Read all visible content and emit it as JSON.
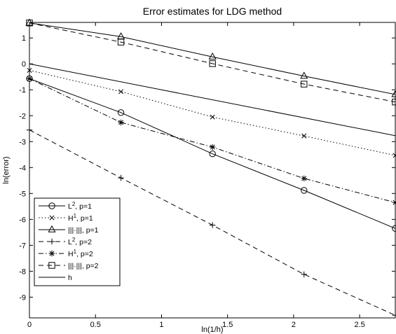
{
  "chart_data": {
    "type": "line",
    "title": "Error estimates for LDG method",
    "xlabel": "ln(1/h)",
    "ylabel": "ln(error)",
    "xlim": [
      0,
      2.77
    ],
    "ylim": [
      -9.8,
      1.6
    ],
    "grid": false,
    "legend_position": "bottom-left",
    "x_ticks": [
      {
        "value": 0,
        "label": "0"
      },
      {
        "value": 0.5,
        "label": "0.5"
      },
      {
        "value": 1,
        "label": "1"
      },
      {
        "value": 1.5,
        "label": "1.5"
      },
      {
        "value": 2,
        "label": "2"
      },
      {
        "value": 2.5,
        "label": "2.5"
      }
    ],
    "y_ticks": [
      {
        "value": 1,
        "label": "1"
      },
      {
        "value": 0,
        "label": "0"
      },
      {
        "value": -1,
        "label": "-1"
      },
      {
        "value": -2,
        "label": "-2"
      },
      {
        "value": -3,
        "label": "-3"
      },
      {
        "value": -4,
        "label": "-4"
      },
      {
        "value": -5,
        "label": "-5"
      },
      {
        "value": -6,
        "label": "-6"
      },
      {
        "value": -7,
        "label": "-7"
      },
      {
        "value": -8,
        "label": "-8"
      },
      {
        "value": -9,
        "label": "-9"
      }
    ],
    "series": [
      {
        "name": "L², p=1",
        "base": "L",
        "sup": "2",
        "suffix": ", p=1",
        "dash": "solid",
        "marker": "circle",
        "x": [
          0,
          0.693,
          1.386,
          2.079,
          2.77
        ],
        "y": [
          -0.57,
          -1.88,
          -3.47,
          -4.88,
          -6.35
        ]
      },
      {
        "name": "H¹, p=1",
        "base": "H",
        "sup": "1",
        "suffix": ", p=1",
        "dash": "dotted",
        "marker": "x",
        "x": [
          0,
          0.693,
          1.386,
          2.079,
          2.77
        ],
        "y": [
          -0.25,
          -1.07,
          -2.05,
          -2.78,
          -3.53
        ]
      },
      {
        "name": "|||·|||, p=1",
        "base": "|||·|||",
        "sup": "",
        "suffix": ", p=1",
        "dash": "solid",
        "marker": "triangle",
        "x": [
          0,
          0.693,
          1.386,
          2.079,
          2.77
        ],
        "y": [
          1.58,
          1.05,
          0.27,
          -0.47,
          -1.18
        ]
      },
      {
        "name": "L², p=2",
        "base": "L",
        "sup": "2",
        "suffix": ", p=2",
        "dash": "dashed",
        "marker": "plus",
        "x": [
          0,
          0.693,
          1.386,
          2.079,
          2.77
        ],
        "y": [
          -2.55,
          -4.4,
          -6.22,
          -8.12,
          -9.7
        ]
      },
      {
        "name": "H¹, p=2",
        "base": "H",
        "sup": "1",
        "suffix": ", p=2",
        "dash": "dashdot",
        "marker": "star",
        "x": [
          0,
          0.693,
          1.386,
          2.079,
          2.77
        ],
        "y": [
          -0.57,
          -2.26,
          -3.21,
          -4.42,
          -5.35
        ]
      },
      {
        "name": "|||·|||, p=2",
        "base": "|||·|||",
        "sup": "",
        "suffix": ", p=2",
        "dash": "dashed",
        "marker": "square",
        "x": [
          0,
          0.693,
          1.386,
          2.079,
          2.77
        ],
        "y": [
          1.58,
          0.84,
          0.01,
          -0.78,
          -1.47
        ]
      },
      {
        "name": "h",
        "base": "h",
        "sup": "",
        "suffix": "",
        "dash": "solid",
        "marker": "none",
        "x": [
          0,
          2.77
        ],
        "y": [
          0,
          -2.77
        ]
      }
    ]
  }
}
